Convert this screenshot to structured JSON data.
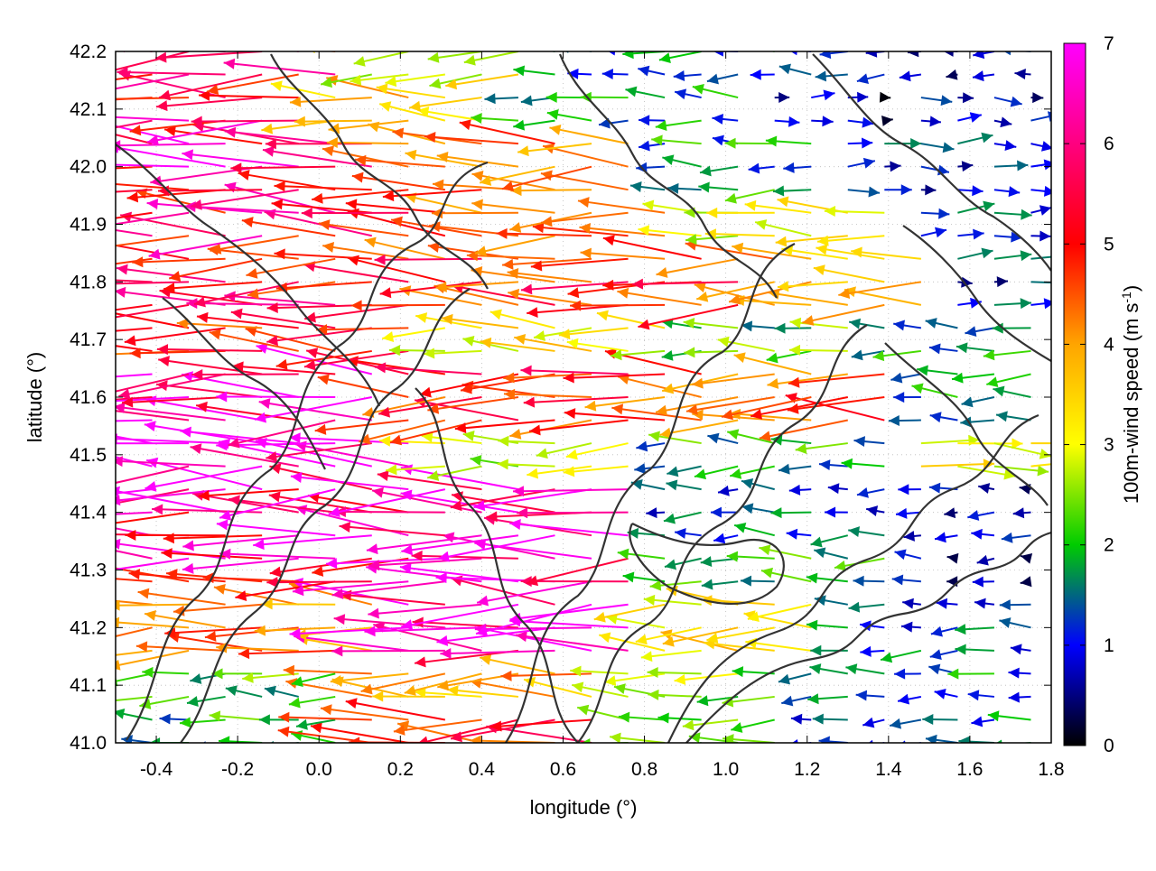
{
  "chart_data": {
    "type": "vector-field",
    "xlabel": "longitude (°)",
    "ylabel": "latitude (°)",
    "xlim": [
      -0.5,
      1.8
    ],
    "ylim": [
      41.0,
      42.2
    ],
    "xticks": [
      -0.4,
      -0.2,
      0.0,
      0.2,
      0.4,
      0.6,
      0.8,
      1.0,
      1.2,
      1.4,
      1.6,
      1.8
    ],
    "yticks": [
      41.0,
      41.1,
      41.2,
      41.3,
      41.4,
      41.5,
      41.6,
      41.7,
      41.8,
      41.9,
      42.0,
      42.1,
      42.2
    ],
    "xtick_labels": [
      "-0.4",
      "-0.2",
      "0.0",
      "0.2",
      "0.4",
      "0.6",
      "0.8",
      "1.0",
      "1.2",
      "1.4",
      "1.6",
      "1.8"
    ],
    "ytick_labels": [
      "41.0",
      "41.1",
      "41.2",
      "41.3",
      "41.4",
      "41.5",
      "41.6",
      "41.7",
      "41.8",
      "41.9",
      "42.0",
      "42.1",
      "42.2"
    ],
    "grid": true,
    "colorbar": {
      "label": "100m-wind speed (m s-1)",
      "label_main": "100m-wind speed (m s",
      "label_sup": "-1",
      "label_end": ")",
      "range": [
        0,
        7
      ],
      "ticks": [
        0,
        1,
        2,
        3,
        4,
        5,
        6,
        7
      ],
      "tick_labels": [
        "0",
        "1",
        "2",
        "3",
        "4",
        "5",
        "6",
        "7"
      ],
      "colors": [
        "#000000",
        "#0000ff",
        "#00cc00",
        "#ffff00",
        "#ffa500",
        "#ff0000",
        "#ff00ff"
      ]
    },
    "vector_rows": [
      {
        "lat": 42.18,
        "segments": [
          {
            "lon": -0.5,
            "speed": 6.0,
            "dir": -1
          },
          {
            "lon": 0.1,
            "speed": 3.5,
            "dir": -1
          },
          {
            "lon": 0.5,
            "speed": 1.8,
            "dir": -1
          },
          {
            "lon": 1.2,
            "speed": 1.0,
            "dir": -1
          }
        ]
      },
      {
        "lat": 42.1,
        "segments": [
          {
            "lon": -0.5,
            "speed": 6.2,
            "dir": -1
          },
          {
            "lon": 0.0,
            "speed": 4.2,
            "dir": -1
          },
          {
            "lon": 0.4,
            "speed": 2.0,
            "dir": -1
          },
          {
            "lon": 1.1,
            "speed": 0.8,
            "dir": 1
          }
        ]
      },
      {
        "lat": 42.0,
        "segments": [
          {
            "lon": -0.5,
            "speed": 6.3,
            "dir": -1
          },
          {
            "lon": 0.2,
            "speed": 5.0,
            "dir": -1
          },
          {
            "lon": 0.8,
            "speed": 2.0,
            "dir": -1
          },
          {
            "lon": 1.3,
            "speed": 1.2,
            "dir": 1
          }
        ]
      },
      {
        "lat": 41.9,
        "segments": [
          {
            "lon": -0.5,
            "speed": 6.0,
            "dir": -1
          },
          {
            "lon": 0.3,
            "speed": 5.2,
            "dir": -1
          },
          {
            "lon": 0.9,
            "speed": 3.6,
            "dir": -1
          },
          {
            "lon": 1.4,
            "speed": 1.5,
            "dir": 1
          }
        ]
      },
      {
        "lat": 41.8,
        "segments": [
          {
            "lon": -0.5,
            "speed": 5.8,
            "dir": -1
          },
          {
            "lon": 0.3,
            "speed": 5.5,
            "dir": -1
          },
          {
            "lon": 1.1,
            "speed": 4.5,
            "dir": -1
          },
          {
            "lon": 1.5,
            "speed": 1.2,
            "dir": 1
          }
        ]
      },
      {
        "lat": 41.7,
        "segments": [
          {
            "lon": -0.5,
            "speed": 5.5,
            "dir": -1
          },
          {
            "lon": 0.3,
            "speed": 3.8,
            "dir": -1
          },
          {
            "lon": 0.9,
            "speed": 2.5,
            "dir": -1
          },
          {
            "lon": 1.4,
            "speed": 2.0,
            "dir": -1
          }
        ]
      },
      {
        "lat": 41.6,
        "segments": [
          {
            "lon": -0.5,
            "speed": 6.8,
            "dir": -1
          },
          {
            "lon": 0.2,
            "speed": 5.5,
            "dir": -1
          },
          {
            "lon": 0.8,
            "speed": 5.2,
            "dir": -1
          },
          {
            "lon": 1.4,
            "speed": 1.8,
            "dir": -1
          }
        ]
      },
      {
        "lat": 41.5,
        "segments": [
          {
            "lon": -0.5,
            "speed": 6.9,
            "dir": -1
          },
          {
            "lon": 0.3,
            "speed": 3.2,
            "dir": -1
          },
          {
            "lon": 0.8,
            "speed": 2.2,
            "dir": -1
          },
          {
            "lon": 1.4,
            "speed": 3.6,
            "dir": 1
          }
        ]
      },
      {
        "lat": 41.4,
        "segments": [
          {
            "lon": -0.5,
            "speed": 6.5,
            "dir": -1
          },
          {
            "lon": 0.3,
            "speed": 6.8,
            "dir": -1
          },
          {
            "lon": 0.8,
            "speed": 1.5,
            "dir": -1
          },
          {
            "lon": 1.4,
            "speed": 1.0,
            "dir": -1
          }
        ]
      },
      {
        "lat": 41.3,
        "segments": [
          {
            "lon": -0.5,
            "speed": 6.2,
            "dir": -1
          },
          {
            "lon": 0.3,
            "speed": 6.9,
            "dir": -1
          },
          {
            "lon": 0.8,
            "speed": 2.4,
            "dir": -1
          },
          {
            "lon": 1.4,
            "speed": 1.1,
            "dir": -1
          }
        ]
      },
      {
        "lat": 41.2,
        "segments": [
          {
            "lon": -0.5,
            "speed": 5.0,
            "dir": -1
          },
          {
            "lon": 0.2,
            "speed": 6.8,
            "dir": -1
          },
          {
            "lon": 0.8,
            "speed": 4.0,
            "dir": -1
          },
          {
            "lon": 1.3,
            "speed": 1.6,
            "dir": -1
          }
        ]
      },
      {
        "lat": 41.1,
        "segments": [
          {
            "lon": -0.5,
            "speed": 2.5,
            "dir": -1
          },
          {
            "lon": 0.1,
            "speed": 4.5,
            "dir": -1
          },
          {
            "lon": 0.7,
            "speed": 3.0,
            "dir": -1
          },
          {
            "lon": 1.2,
            "speed": 1.8,
            "dir": -1
          }
        ]
      },
      {
        "lat": 41.02,
        "segments": [
          {
            "lon": -0.5,
            "speed": 2.2,
            "dir": -1
          },
          {
            "lon": 0.1,
            "speed": 5.5,
            "dir": -1
          },
          {
            "lon": 0.7,
            "speed": 2.8,
            "dir": -1
          },
          {
            "lon": 1.2,
            "speed": 1.7,
            "dir": -1
          }
        ]
      }
    ]
  }
}
